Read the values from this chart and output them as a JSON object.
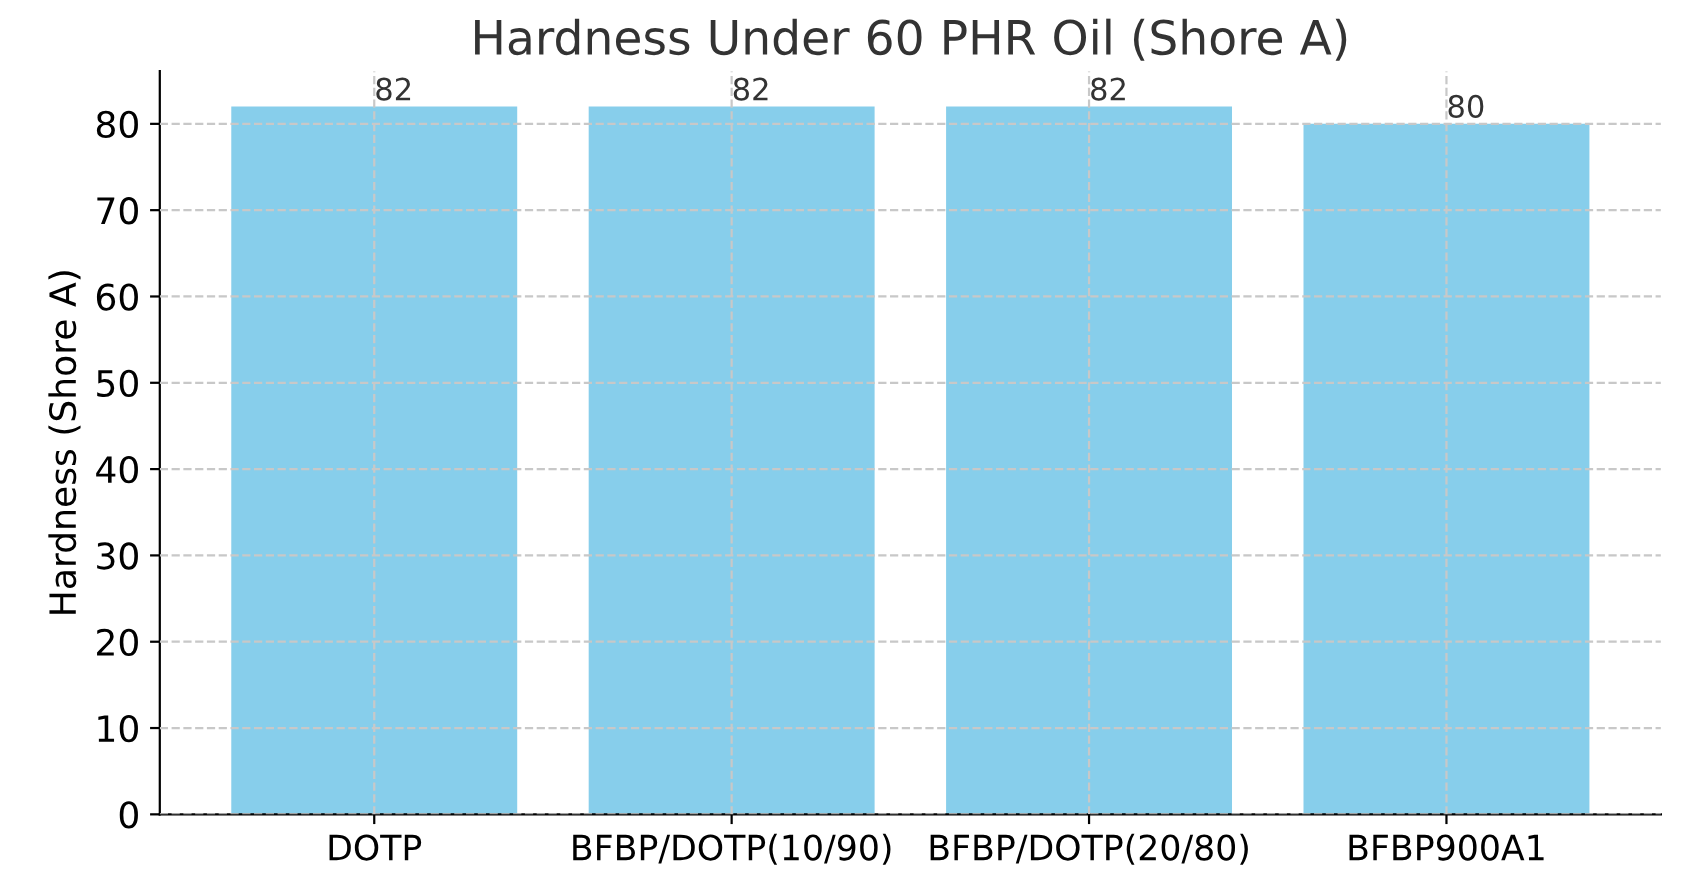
{
  "chart_data": {
    "type": "bar",
    "title": "Hardness Under 60 PHR Oil (Shore A)",
    "ylabel": "Hardness (Shore A)",
    "categories": [
      "DOTP",
      "BFBP/DOTP(10/90)",
      "BFBP/DOTP(20/80)",
      "BFBP900A1"
    ],
    "values": [
      82,
      82,
      82,
      80
    ],
    "color": "#87ceeb",
    "ylim": [
      0,
      86.1
    ],
    "yticks": [
      0,
      10,
      20,
      30,
      40,
      50,
      60,
      70,
      80
    ],
    "grid": true,
    "data_labels": true
  }
}
